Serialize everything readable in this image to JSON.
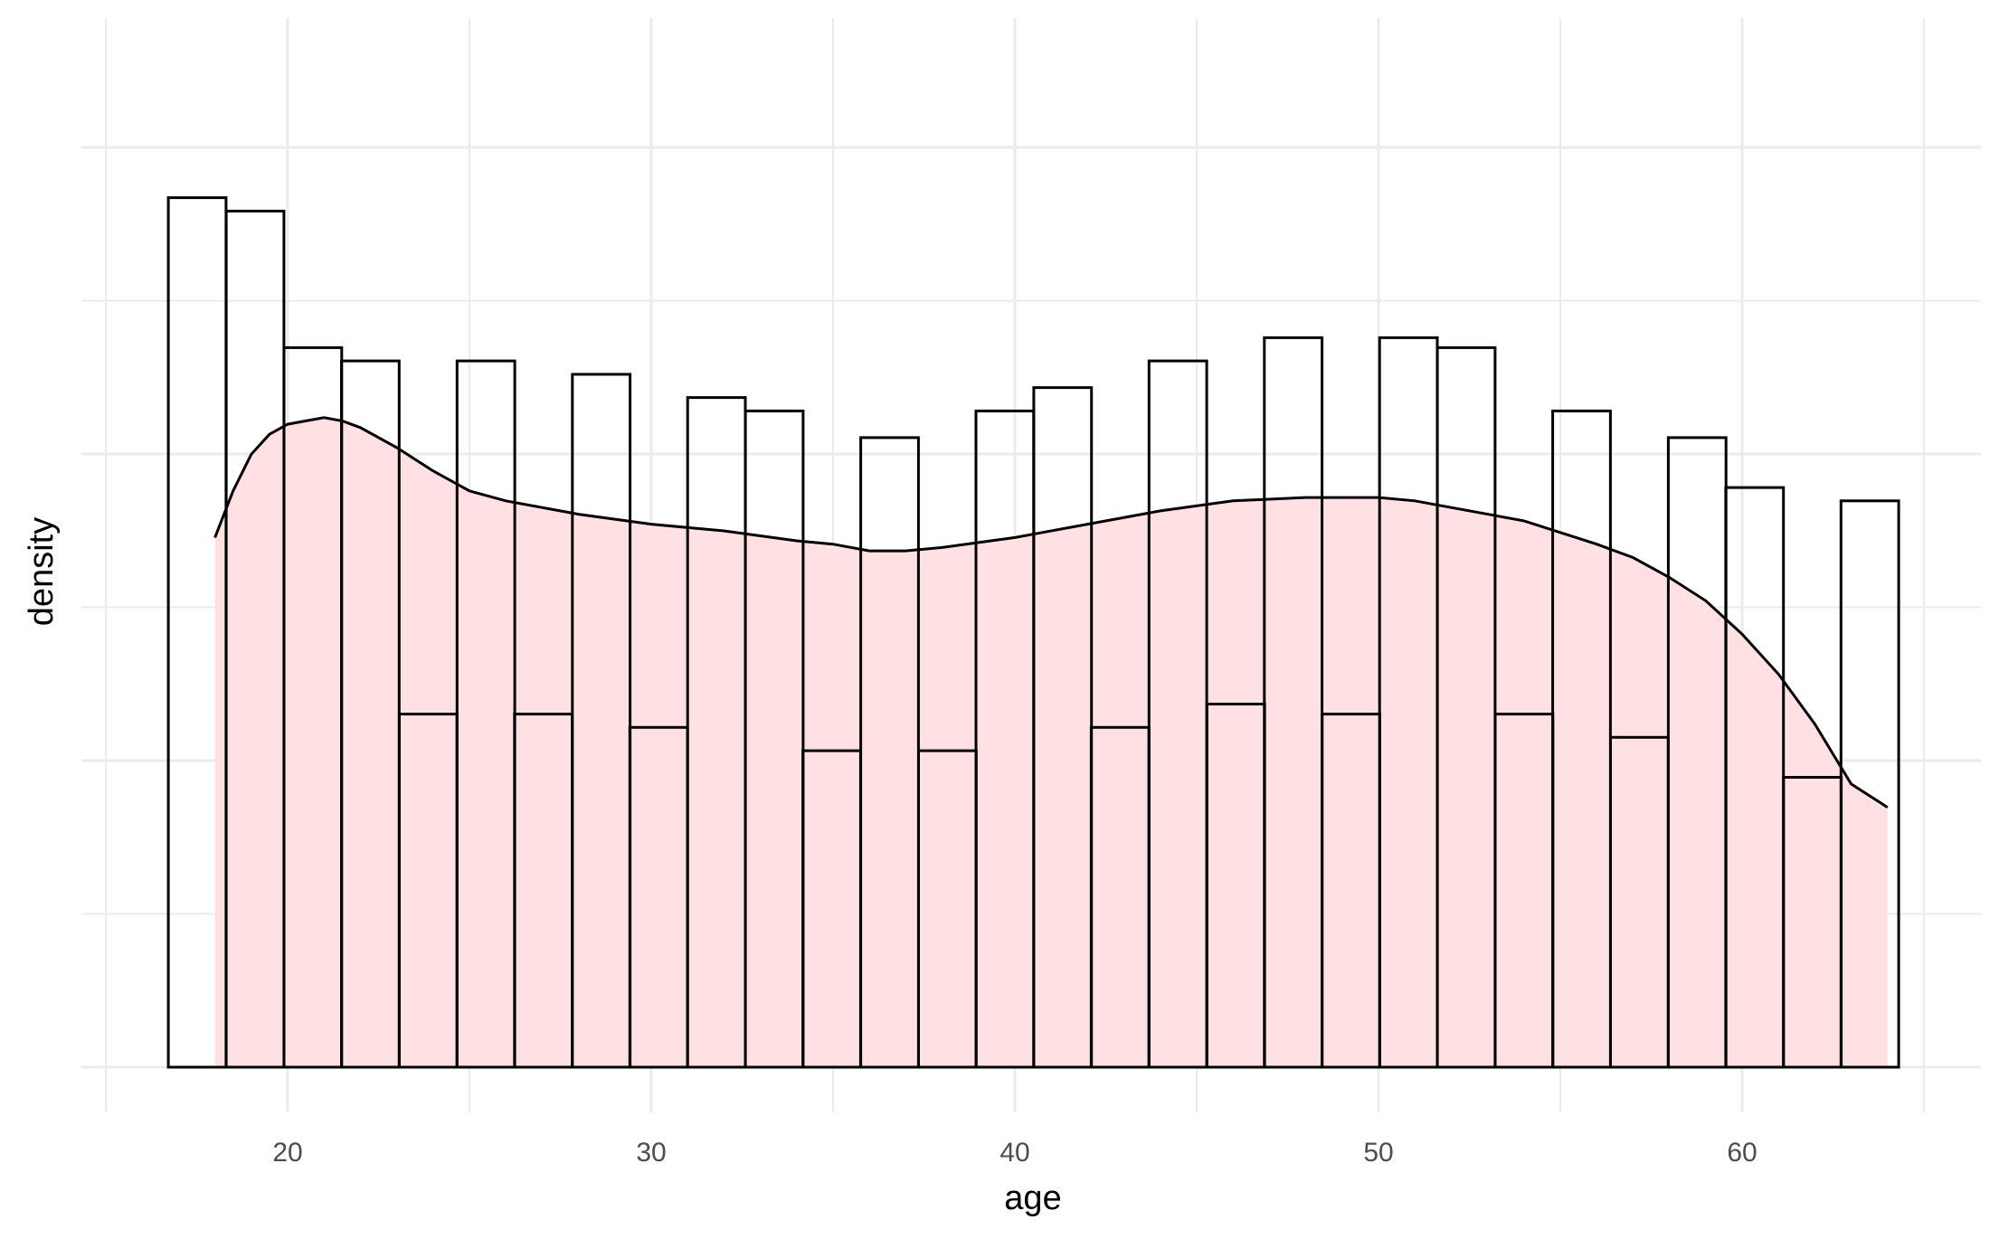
{
  "chart_data": {
    "type": "bar",
    "xlabel": "age",
    "ylabel": "density",
    "xlim": [
      15,
      65
    ],
    "ylim": [
      0,
      0.03
    ],
    "x_ticks": [
      20,
      30,
      40,
      50,
      60
    ],
    "y_ticks_shown": false,
    "grid": true,
    "colors": {
      "outline": "#000000",
      "fill_density": "#ffe0e3",
      "grid": "#ebebeb",
      "tick_label": "#4d4d4d"
    },
    "histogram": {
      "bin_width": 1.5862,
      "bin_starts": [
        16.72,
        18.31,
        19.9,
        21.48,
        23.07,
        24.66,
        26.24,
        27.83,
        29.41,
        31.0,
        32.59,
        34.17,
        35.76,
        37.35,
        38.93,
        40.52,
        42.1,
        43.69,
        45.28,
        46.86,
        48.45,
        50.03,
        51.62,
        53.21,
        54.79,
        56.38,
        57.97,
        59.55,
        61.14,
        62.72
      ],
      "values": [
        0.0261,
        0.0257,
        0.0216,
        0.0212,
        0.0106,
        0.0212,
        0.0106,
        0.0208,
        0.0102,
        0.0201,
        0.0197,
        0.0095,
        0.0189,
        0.0095,
        0.0197,
        0.0204,
        0.0102,
        0.0212,
        0.0109,
        0.0219,
        0.0106,
        0.0219,
        0.0216,
        0.0106,
        0.0197,
        0.0099,
        0.0189,
        0.0174,
        0.0087,
        0.017
      ]
    },
    "density_curve": {
      "x": [
        18,
        18.5,
        19,
        19.5,
        20,
        20.5,
        21,
        21.5,
        22,
        23,
        24,
        25,
        26,
        28,
        30,
        32,
        34,
        35,
        36,
        37,
        38,
        40,
        42,
        44,
        46,
        48,
        49,
        50,
        51,
        52,
        54,
        56,
        57,
        58,
        59,
        60,
        61,
        62,
        63,
        64
      ],
      "y": [
        0.0159,
        0.0173,
        0.0184,
        0.019,
        0.0193,
        0.0194,
        0.0195,
        0.0194,
        0.0192,
        0.0186,
        0.0179,
        0.0173,
        0.017,
        0.0166,
        0.0163,
        0.0161,
        0.0158,
        0.0157,
        0.0155,
        0.0155,
        0.0156,
        0.0159,
        0.0163,
        0.0167,
        0.017,
        0.0171,
        0.0171,
        0.0171,
        0.017,
        0.0168,
        0.0164,
        0.0157,
        0.0153,
        0.0147,
        0.014,
        0.013,
        0.0118,
        0.0103,
        0.0085,
        0.0078
      ]
    }
  }
}
